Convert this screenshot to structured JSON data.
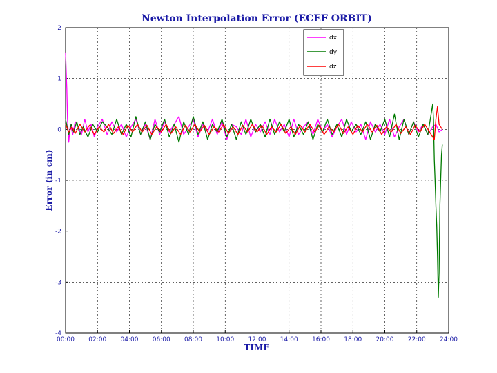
{
  "chart_data": {
    "type": "line",
    "title": "Newton Interpolation Error (ECEF ORBIT)",
    "xlabel": "TIME",
    "ylabel": "Error (in cm)",
    "xlim": [
      0,
      24
    ],
    "ylim": [
      -4,
      2
    ],
    "x_ticks": [
      0,
      2,
      4,
      6,
      8,
      10,
      12,
      14,
      16,
      18,
      20,
      22,
      24
    ],
    "x_tick_labels": [
      "00:00",
      "02:00",
      "04:00",
      "06:00",
      "08:00",
      "10:00",
      "12:00",
      "14:00",
      "16:00",
      "18:00",
      "20:00",
      "22:00",
      "24:00"
    ],
    "y_ticks": [
      2,
      1,
      0,
      -1,
      -2,
      -3,
      -4
    ],
    "y_tick_labels": [
      "2",
      "1",
      "0",
      "-1",
      "-2",
      "-3",
      "-4"
    ],
    "grid": true,
    "legend_position": "top-right",
    "series": [
      {
        "name": "dx",
        "color": "#ff00ff",
        "x": [
          0,
          0.08,
          0.12,
          0.2,
          0.3,
          0.45,
          0.6,
          0.8,
          1.0,
          1.2,
          1.4,
          1.6,
          1.8,
          2.0,
          2.3,
          2.6,
          2.9,
          3.2,
          3.5,
          3.8,
          4.1,
          4.4,
          4.7,
          5.0,
          5.3,
          5.6,
          5.9,
          6.2,
          6.5,
          6.8,
          7.1,
          7.4,
          7.7,
          8.0,
          8.3,
          8.6,
          8.9,
          9.2,
          9.5,
          9.8,
          10.1,
          10.4,
          10.7,
          11.0,
          11.3,
          11.6,
          11.9,
          12.2,
          12.5,
          12.8,
          13.1,
          13.4,
          13.7,
          14.0,
          14.3,
          14.6,
          14.9,
          15.2,
          15.5,
          15.8,
          16.1,
          16.4,
          16.7,
          17.0,
          17.3,
          17.6,
          17.9,
          18.2,
          18.5,
          18.8,
          19.1,
          19.4,
          19.7,
          20.0,
          20.3,
          20.6,
          20.9,
          21.2,
          21.5,
          21.8,
          22.1,
          22.4,
          22.7,
          23.0,
          23.2,
          23.4,
          23.6
        ],
        "values": [
          1.5,
          0.8,
          0.2,
          -0.25,
          0.1,
          -0.1,
          0.15,
          0.05,
          -0.1,
          0.2,
          -0.05,
          0.1,
          -0.15,
          0.05,
          0.2,
          -0.1,
          0.15,
          -0.05,
          0.1,
          -0.15,
          0.05,
          0.2,
          -0.1,
          0.1,
          -0.2,
          0.2,
          -0.1,
          0.15,
          -0.05,
          0.1,
          0.25,
          -0.1,
          0.05,
          0.2,
          -0.15,
          0.1,
          -0.05,
          0.2,
          -0.1,
          0.15,
          -0.2,
          0.1,
          0.05,
          -0.1,
          0.2,
          -0.15,
          0.1,
          -0.05,
          0.15,
          -0.1,
          0.2,
          -0.05,
          0.1,
          -0.15,
          0.2,
          -0.1,
          0.05,
          0.15,
          -0.1,
          0.2,
          -0.05,
          0.1,
          -0.15,
          0.05,
          0.2,
          -0.1,
          0.15,
          -0.05,
          0.1,
          -0.2,
          0.15,
          -0.05,
          0.1,
          -0.1,
          0.2,
          -0.15,
          0.05,
          0.2,
          -0.1,
          0.15,
          -0.05,
          0.1,
          -0.1,
          0.05,
          0.1,
          -0.05,
          0.0
        ]
      },
      {
        "name": "dy",
        "color": "#007a00",
        "x": [
          0,
          0.1,
          0.2,
          0.35,
          0.5,
          0.7,
          0.9,
          1.1,
          1.4,
          1.7,
          2.0,
          2.3,
          2.6,
          2.9,
          3.2,
          3.5,
          3.8,
          4.1,
          4.4,
          4.7,
          5.0,
          5.3,
          5.6,
          5.9,
          6.2,
          6.5,
          6.8,
          7.1,
          7.4,
          7.7,
          8.0,
          8.3,
          8.6,
          8.9,
          9.2,
          9.5,
          9.8,
          10.1,
          10.4,
          10.7,
          11.0,
          11.3,
          11.6,
          11.9,
          12.2,
          12.5,
          12.8,
          13.1,
          13.4,
          13.7,
          14.0,
          14.3,
          14.6,
          14.9,
          15.2,
          15.5,
          15.8,
          16.1,
          16.4,
          16.7,
          17.0,
          17.3,
          17.6,
          17.9,
          18.2,
          18.5,
          18.8,
          19.1,
          19.4,
          19.7,
          20.0,
          20.3,
          20.6,
          20.9,
          21.2,
          21.5,
          21.8,
          22.1,
          22.4,
          22.7,
          23.0,
          23.05,
          23.1,
          23.15,
          23.2,
          23.25,
          23.3,
          23.35,
          23.4,
          23.45,
          23.5,
          23.55,
          23.6
        ],
        "values": [
          0.2,
          0.05,
          -0.1,
          0.1,
          -0.05,
          0.15,
          -0.1,
          0.05,
          -0.15,
          0.1,
          -0.05,
          0.15,
          0.05,
          -0.1,
          0.2,
          -0.1,
          0.1,
          -0.15,
          0.25,
          -0.1,
          0.15,
          -0.2,
          0.1,
          -0.05,
          0.2,
          -0.15,
          0.1,
          -0.25,
          0.15,
          -0.1,
          0.25,
          -0.1,
          0.15,
          -0.2,
          0.1,
          -0.05,
          0.2,
          -0.15,
          0.1,
          -0.2,
          0.15,
          -0.1,
          0.2,
          -0.05,
          0.1,
          -0.15,
          0.2,
          -0.1,
          0.15,
          -0.05,
          0.2,
          -0.15,
          0.1,
          -0.1,
          0.15,
          -0.2,
          0.1,
          -0.05,
          0.2,
          -0.1,
          0.1,
          -0.15,
          0.2,
          -0.05,
          0.1,
          -0.1,
          0.15,
          -0.2,
          0.1,
          -0.05,
          0.2,
          -0.15,
          0.3,
          -0.2,
          0.2,
          -0.1,
          0.15,
          -0.15,
          0.1,
          -0.1,
          0.5,
          0.2,
          -0.6,
          -1.0,
          -1.5,
          -1.9,
          -2.5,
          -3.3,
          -2.8,
          -1.5,
          -1.0,
          -0.5,
          -0.3
        ]
      },
      {
        "name": "dz",
        "color": "#ff0000",
        "x": [
          0,
          0.2,
          0.4,
          0.6,
          0.9,
          1.2,
          1.5,
          1.8,
          2.1,
          2.4,
          2.7,
          3.0,
          3.3,
          3.6,
          3.9,
          4.2,
          4.5,
          4.8,
          5.1,
          5.4,
          5.7,
          6.0,
          6.3,
          6.6,
          6.9,
          7.2,
          7.5,
          7.8,
          8.1,
          8.4,
          8.7,
          9.0,
          9.3,
          9.6,
          9.9,
          10.2,
          10.5,
          10.8,
          11.1,
          11.4,
          11.7,
          12.0,
          12.3,
          12.6,
          12.9,
          13.2,
          13.5,
          13.8,
          14.1,
          14.4,
          14.7,
          15.0,
          15.3,
          15.6,
          15.9,
          16.2,
          16.5,
          16.8,
          17.1,
          17.4,
          17.7,
          18.0,
          18.3,
          18.6,
          18.9,
          19.2,
          19.5,
          19.8,
          20.1,
          20.4,
          20.7,
          21.0,
          21.3,
          21.6,
          21.9,
          22.2,
          22.5,
          22.8,
          23.1,
          23.2,
          23.3,
          23.4,
          23.5,
          23.6
        ],
        "values": [
          0.1,
          -0.05,
          0.05,
          -0.08,
          0.1,
          -0.05,
          0.08,
          -0.1,
          0.05,
          -0.05,
          0.1,
          -0.08,
          0.05,
          -0.1,
          0.08,
          -0.05,
          0.1,
          -0.05,
          0.08,
          -0.1,
          0.05,
          -0.05,
          0.1,
          -0.08,
          0.05,
          -0.1,
          0.08,
          -0.05,
          0.1,
          -0.05,
          0.08,
          -0.1,
          0.05,
          -0.05,
          0.1,
          -0.08,
          0.05,
          -0.1,
          0.08,
          -0.05,
          0.1,
          -0.05,
          0.08,
          -0.1,
          0.05,
          -0.05,
          0.1,
          -0.08,
          0.05,
          -0.1,
          0.08,
          -0.05,
          0.1,
          -0.05,
          0.08,
          -0.1,
          0.05,
          -0.05,
          0.1,
          -0.08,
          0.05,
          -0.1,
          0.08,
          -0.05,
          0.1,
          -0.05,
          0.08,
          -0.1,
          0.05,
          -0.05,
          0.1,
          -0.08,
          0.05,
          -0.1,
          0.08,
          -0.05,
          0.1,
          -0.05,
          -0.2,
          0.2,
          0.45,
          0.1,
          0.05,
          0.0
        ]
      }
    ]
  }
}
